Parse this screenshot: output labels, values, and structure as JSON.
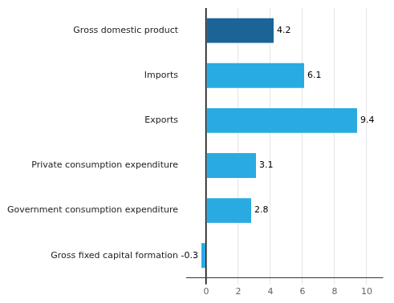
{
  "chart_data": {
    "type": "bar",
    "orientation": "horizontal",
    "categories": [
      "Gross fixed capital formation",
      "Government consumption expenditure",
      "Private consumption expenditure",
      "Exports",
      "Imports",
      "Gross domestic product"
    ],
    "values": [
      -0.3,
      2.8,
      3.1,
      9.4,
      6.1,
      4.2
    ],
    "colors": [
      "#29abe2",
      "#29abe2",
      "#29abe2",
      "#29abe2",
      "#29abe2",
      "#1a6496"
    ],
    "xlim": [
      -1.2,
      11
    ],
    "xticks": [
      0,
      2,
      4,
      6,
      8,
      10
    ],
    "grid": true,
    "data_labels": true
  }
}
